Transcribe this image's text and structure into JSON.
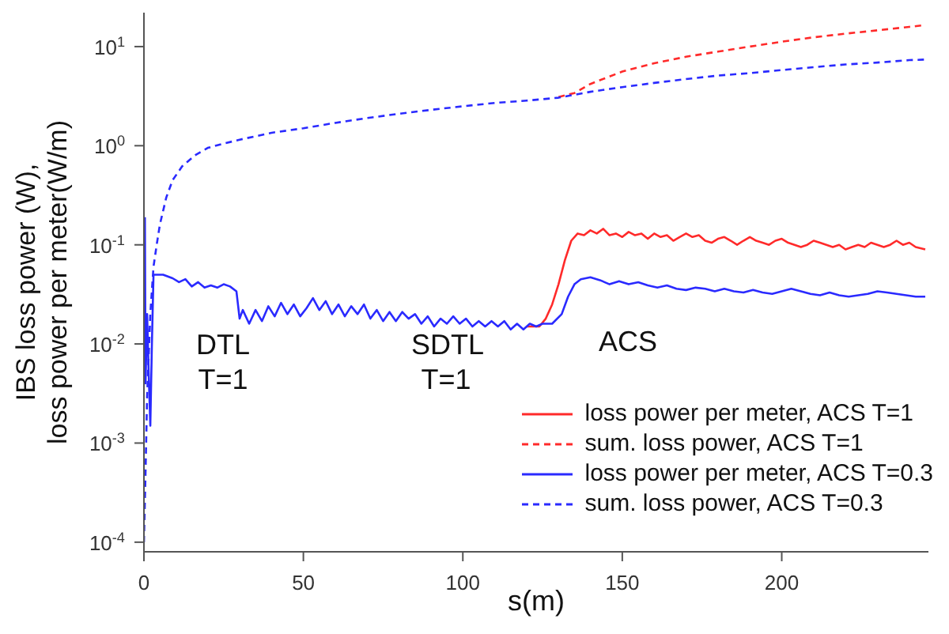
{
  "chart_data": {
    "type": "line",
    "xlabel": "s(m)",
    "ylabel": "IBS loss power (W),\nloss power per meter(W/m)",
    "log": "y",
    "grid": false,
    "legend": "bottom right",
    "marker": "none",
    "xlim": [
      0,
      246
    ],
    "xticks": [
      0,
      50,
      100,
      150,
      200
    ],
    "ylim": [
      8e-05,
      22
    ],
    "yticks": [
      {
        "value": 0.0001,
        "label": "10$^{-4}$"
      },
      {
        "value": 0.001,
        "label": "10$^{-3}$"
      },
      {
        "value": 0.01,
        "label": "10$^{-2}$"
      },
      {
        "value": 0.1,
        "label": "10$^{-1}$"
      },
      {
        "value": 1,
        "label": "10$^{0}$"
      },
      {
        "value": 10,
        "label": "10$^{1}$"
      }
    ],
    "annotations": [
      "DTL",
      "T=1",
      "SDTL",
      "T=1",
      "ACS"
    ],
    "series": [
      {
        "name": "loss power per meter, ACS T=1",
        "color": "#ff2a2a",
        "line_style": "solid",
        "x": [
          120,
          124,
          126,
          128,
          130,
          132,
          134,
          136,
          138,
          140,
          142,
          144,
          146,
          148,
          150,
          152,
          154,
          156,
          158,
          160,
          162,
          164,
          166,
          168,
          170,
          172,
          174,
          176,
          178,
          180,
          182,
          184,
          186,
          188,
          190,
          192,
          194,
          196,
          198,
          200,
          202,
          204,
          206,
          208,
          210,
          212,
          214,
          216,
          218,
          220,
          222,
          224,
          226,
          228,
          230,
          232,
          234,
          236,
          238,
          240,
          242,
          245
        ],
        "values": [
          0.015,
          0.015,
          0.018,
          0.025,
          0.04,
          0.07,
          0.11,
          0.13,
          0.125,
          0.14,
          0.13,
          0.145,
          0.125,
          0.13,
          0.12,
          0.135,
          0.125,
          0.13,
          0.115,
          0.13,
          0.12,
          0.125,
          0.11,
          0.12,
          0.13,
          0.12,
          0.125,
          0.11,
          0.105,
          0.115,
          0.12,
          0.11,
          0.1,
          0.11,
          0.12,
          0.11,
          0.105,
          0.1,
          0.11,
          0.115,
          0.105,
          0.1,
          0.095,
          0.1,
          0.11,
          0.105,
          0.1,
          0.095,
          0.1,
          0.09,
          0.095,
          0.1,
          0.095,
          0.105,
          0.1,
          0.095,
          0.1,
          0.11,
          0.1,
          0.105,
          0.095,
          0.09
        ]
      },
      {
        "name": "sum. loss power, ACS T=1",
        "color": "#ff2a2a",
        "line_style": "dashed",
        "x": [
          130,
          135,
          140,
          150,
          160,
          170,
          180,
          190,
          200,
          210,
          220,
          230,
          240,
          245
        ],
        "values": [
          3.1,
          3.4,
          4.2,
          5.6,
          6.8,
          7.9,
          8.9,
          10,
          11.2,
          12.4,
          13.5,
          14.6,
          15.8,
          16.5
        ]
      },
      {
        "name": "loss power per meter, ACS T=0.3",
        "color": "#2a2aff",
        "line_style": "solid",
        "x": [
          0.3,
          0.5,
          1,
          1.5,
          2,
          2.5,
          3,
          6,
          9,
          11,
          13,
          15,
          17,
          19,
          21,
          23,
          25,
          27,
          29,
          30,
          31,
          33,
          35,
          37,
          39,
          41,
          43,
          45,
          47,
          49,
          51,
          53,
          55,
          57,
          59,
          61,
          63,
          65,
          67,
          69,
          71,
          73,
          75,
          77,
          79,
          81,
          83,
          85,
          87,
          89,
          91,
          93,
          95,
          97,
          99,
          101,
          103,
          105,
          107,
          109,
          111,
          113,
          115,
          117,
          119,
          121,
          123,
          125,
          128,
          131,
          133,
          135,
          137,
          140,
          143,
          146,
          149,
          152,
          155,
          158,
          161,
          164,
          167,
          170,
          173,
          176,
          179,
          182,
          185,
          188,
          191,
          194,
          197,
          200,
          203,
          206,
          209,
          212,
          215,
          218,
          221,
          224,
          227,
          230,
          233,
          236,
          239,
          242,
          245
        ],
        "values": [
          0.19,
          0.004,
          0.02,
          0.005,
          0.0015,
          0.01,
          0.05,
          0.05,
          0.046,
          0.042,
          0.045,
          0.038,
          0.042,
          0.037,
          0.039,
          0.037,
          0.04,
          0.038,
          0.034,
          0.018,
          0.022,
          0.016,
          0.022,
          0.017,
          0.024,
          0.019,
          0.026,
          0.02,
          0.025,
          0.019,
          0.023,
          0.029,
          0.022,
          0.027,
          0.02,
          0.025,
          0.019,
          0.024,
          0.02,
          0.025,
          0.018,
          0.022,
          0.017,
          0.021,
          0.017,
          0.021,
          0.018,
          0.02,
          0.016,
          0.019,
          0.015,
          0.018,
          0.016,
          0.019,
          0.016,
          0.018,
          0.015,
          0.017,
          0.015,
          0.017,
          0.015,
          0.017,
          0.014,
          0.016,
          0.014,
          0.016,
          0.015,
          0.016,
          0.016,
          0.02,
          0.03,
          0.04,
          0.045,
          0.047,
          0.044,
          0.04,
          0.043,
          0.04,
          0.042,
          0.039,
          0.037,
          0.039,
          0.036,
          0.035,
          0.037,
          0.036,
          0.034,
          0.036,
          0.034,
          0.033,
          0.035,
          0.033,
          0.032,
          0.034,
          0.036,
          0.034,
          0.032,
          0.031,
          0.033,
          0.031,
          0.03,
          0.031,
          0.032,
          0.034,
          0.033,
          0.032,
          0.031,
          0.03,
          0.03
        ]
      },
      {
        "name": "sum. loss power, ACS T=0.3",
        "color": "#2a2aff",
        "line_style": "dashed",
        "x": [
          0,
          0.5,
          1,
          2,
          3,
          4,
          5,
          7,
          9,
          12,
          16,
          20,
          25,
          30,
          40,
          50,
          60,
          70,
          80,
          90,
          100,
          110,
          120,
          130,
          140,
          150,
          160,
          170,
          180,
          190,
          200,
          210,
          220,
          230,
          240,
          245
        ],
        "values": [
          0.0001,
          0.0005,
          0.003,
          0.02,
          0.06,
          0.1,
          0.16,
          0.3,
          0.45,
          0.62,
          0.8,
          0.95,
          1.05,
          1.15,
          1.35,
          1.5,
          1.7,
          1.9,
          2.1,
          2.3,
          2.5,
          2.7,
          2.85,
          3.05,
          3.5,
          3.9,
          4.3,
          4.7,
          5.1,
          5.4,
          5.8,
          6.2,
          6.6,
          6.9,
          7.3,
          7.4
        ]
      }
    ]
  }
}
